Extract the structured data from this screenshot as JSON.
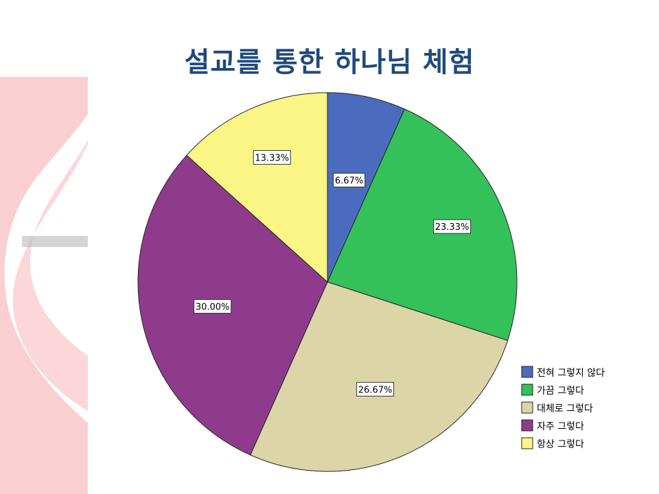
{
  "slide": {
    "title": "설교를 통한 하나님 체험"
  },
  "colors": {
    "title": "#1F497D",
    "decor_red": "#E8232E",
    "decor_gray": "#B9B9B9"
  },
  "chart_data": {
    "type": "pie",
    "title": "",
    "start_angle_deg": 0,
    "direction": "clockwise",
    "legend_position": "bottom-right",
    "slices": [
      {
        "label": "전혀 그렇지 않다",
        "value": 6.67,
        "display": "6.67%",
        "color": "#4B6CBE"
      },
      {
        "label": "가끔 그렇다",
        "value": 23.33,
        "display": "23.33%",
        "color": "#34C15A"
      },
      {
        "label": "대체로 그렇다",
        "value": 26.67,
        "display": "26.67%",
        "color": "#DCD5A8"
      },
      {
        "label": "자주 그렇다",
        "value": 30.0,
        "display": "30.00%",
        "color": "#8E3B8C"
      },
      {
        "label": "항상 그렇다",
        "value": 13.33,
        "display": "13.33%",
        "color": "#FAF585"
      }
    ]
  }
}
